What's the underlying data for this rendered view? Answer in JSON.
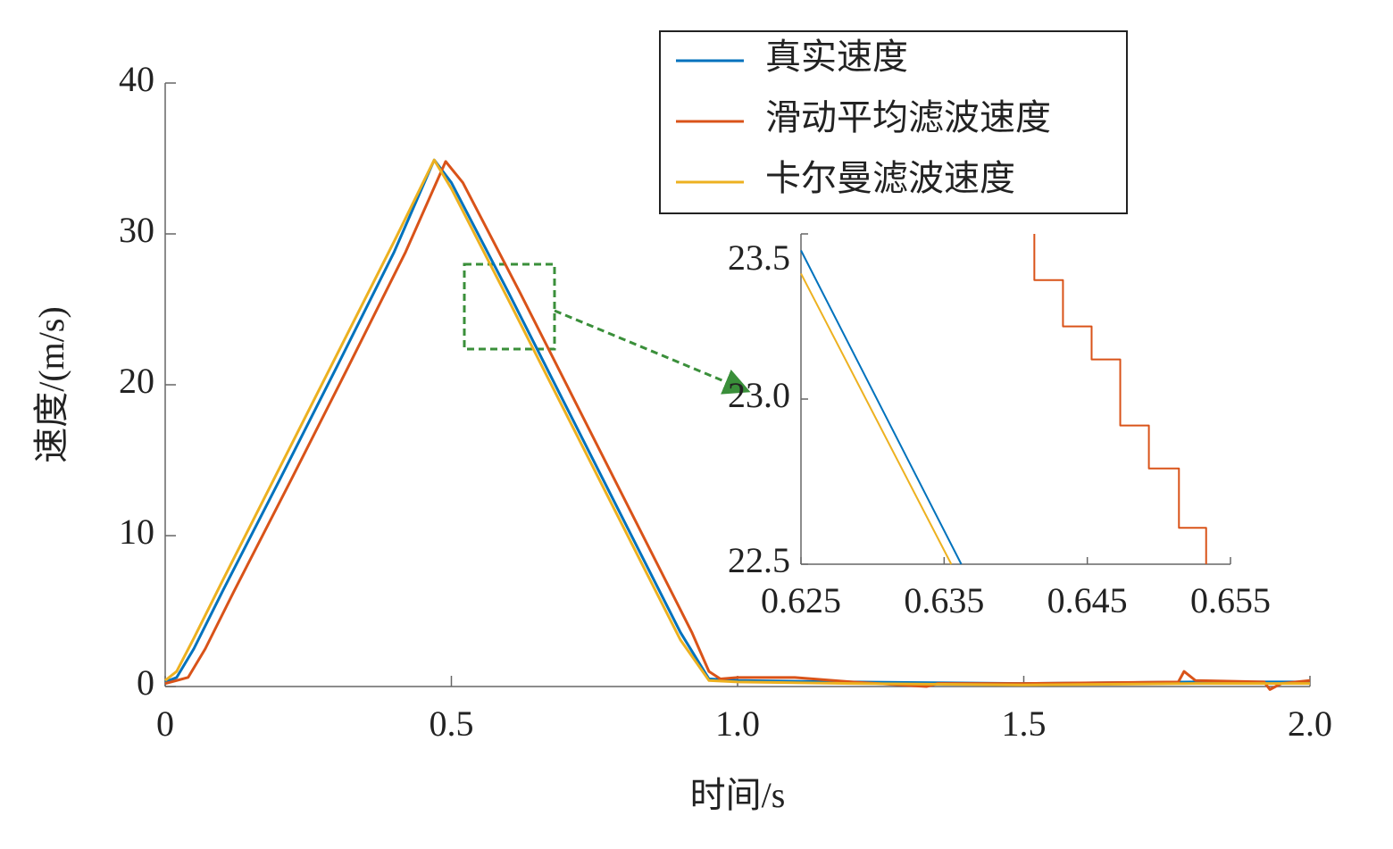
{
  "chart_data": [
    {
      "type": "line",
      "xlabel": "时间/s",
      "ylabel": "速度/(m/s)",
      "xlim": [
        0,
        2
      ],
      "ylim": [
        0,
        40
      ],
      "xticks": [
        0,
        0.5,
        {
          "value": 1,
          "label": "1.0"
        },
        1.5,
        {
          "value": 2,
          "label": "2.0"
        }
      ],
      "yticks": [
        0,
        10,
        20,
        30,
        40
      ],
      "legend": "upper right",
      "series": [
        {
          "name": "真实速度",
          "color": "#0072bd",
          "x": [
            0,
            0.02,
            0.05,
            0.1,
            0.2,
            0.3,
            0.4,
            0.47,
            0.5,
            0.6,
            0.7,
            0.8,
            0.9,
            0.95,
            1.0,
            1.2,
            1.5,
            1.8,
            2.0
          ],
          "values": [
            0.3,
            0.6,
            2.5,
            6.3,
            13.7,
            21.2,
            28.8,
            34.9,
            33.4,
            26.1,
            18.6,
            11.1,
            3.6,
            0.5,
            0.4,
            0.3,
            0.2,
            0.3,
            0.3
          ]
        },
        {
          "name": "滑动平均滤波速度",
          "color": "#d95319",
          "x": [
            0,
            0.04,
            0.07,
            0.12,
            0.22,
            0.32,
            0.42,
            0.49,
            0.52,
            0.62,
            0.72,
            0.82,
            0.92,
            0.95,
            0.97,
            1.0,
            1.1,
            1.2,
            1.33,
            1.35,
            1.5,
            1.77,
            1.78,
            1.8,
            1.92,
            1.93,
            1.95,
            2.0
          ],
          "values": [
            0.2,
            0.6,
            2.5,
            6.3,
            13.7,
            21.2,
            28.8,
            34.8,
            33.4,
            26.1,
            18.6,
            11.1,
            3.6,
            1.0,
            0.5,
            0.6,
            0.6,
            0.3,
            0.0,
            0.2,
            0.2,
            0.3,
            1.0,
            0.4,
            0.3,
            -0.2,
            0.2,
            0.4
          ]
        },
        {
          "name": "卡尔曼滤波速度",
          "color": "#edb120",
          "x": [
            0,
            0.02,
            0.05,
            0.1,
            0.2,
            0.3,
            0.4,
            0.47,
            0.5,
            0.6,
            0.7,
            0.8,
            0.9,
            0.95,
            1.0,
            1.2,
            1.5,
            1.8,
            2.0
          ],
          "values": [
            0.4,
            1.0,
            3.2,
            7.0,
            14.5,
            22.0,
            29.5,
            34.9,
            33.0,
            25.6,
            18.1,
            10.6,
            3.1,
            0.4,
            0.3,
            0.2,
            0.1,
            0.2,
            0.2
          ]
        }
      ]
    },
    {
      "type": "line",
      "xlim": [
        0.625,
        0.655
      ],
      "ylim": [
        22.5,
        23.5
      ],
      "xticks": [
        0.625,
        0.635,
        0.645,
        0.655
      ],
      "yticks": [
        22.5,
        {
          "value": 23,
          "label": "23.0"
        },
        23.5
      ],
      "series": [
        {
          "color": "#0072bd",
          "x": [
            0.625,
            0.6362
          ],
          "values": [
            23.45,
            22.5
          ]
        },
        {
          "color": "#d95319",
          "x": [
            0.6413,
            0.6413,
            0.6433,
            0.6433,
            0.6453,
            0.6453,
            0.6473,
            0.6473,
            0.6493,
            0.6493,
            0.6514,
            0.6514,
            0.6533,
            0.6533
          ],
          "values": [
            23.5,
            23.36,
            23.36,
            23.22,
            23.22,
            23.12,
            23.12,
            22.92,
            22.92,
            22.79,
            22.79,
            22.61,
            22.61,
            22.5
          ]
        },
        {
          "color": "#edb120",
          "x": [
            0.625,
            0.6355
          ],
          "values": [
            23.38,
            22.5
          ]
        }
      ]
    }
  ]
}
